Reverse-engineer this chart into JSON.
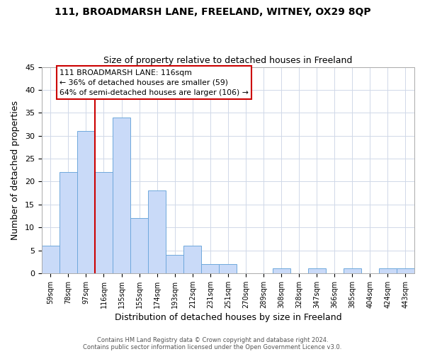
{
  "title1": "111, BROADMARSH LANE, FREELAND, WITNEY, OX29 8QP",
  "title2": "Size of property relative to detached houses in Freeland",
  "xlabel": "Distribution of detached houses by size in Freeland",
  "ylabel": "Number of detached properties",
  "bin_labels": [
    "59sqm",
    "78sqm",
    "97sqm",
    "116sqm",
    "135sqm",
    "155sqm",
    "174sqm",
    "193sqm",
    "212sqm",
    "231sqm",
    "251sqm",
    "270sqm",
    "289sqm",
    "308sqm",
    "328sqm",
    "347sqm",
    "366sqm",
    "385sqm",
    "404sqm",
    "424sqm",
    "443sqm"
  ],
  "bar_heights": [
    6,
    22,
    31,
    22,
    34,
    12,
    18,
    4,
    6,
    2,
    2,
    0,
    0,
    1,
    0,
    1,
    0,
    1,
    0,
    1,
    1
  ],
  "bar_color": "#c9daf8",
  "bar_edge_color": "#6fa8dc",
  "vline_color": "#cc0000",
  "ylim": [
    0,
    45
  ],
  "yticks": [
    0,
    5,
    10,
    15,
    20,
    25,
    30,
    35,
    40,
    45
  ],
  "annotation_title": "111 BROADMARSH LANE: 116sqm",
  "annotation_line1": "← 36% of detached houses are smaller (59)",
  "annotation_line2": "64% of semi-detached houses are larger (106) →",
  "annotation_box_color": "#ffffff",
  "annotation_box_edge": "#cc0000",
  "footer1": "Contains HM Land Registry data © Crown copyright and database right 2024.",
  "footer2": "Contains public sector information licensed under the Open Government Licence v3.0.",
  "background_color": "#ffffff",
  "grid_color": "#d0d8e8"
}
